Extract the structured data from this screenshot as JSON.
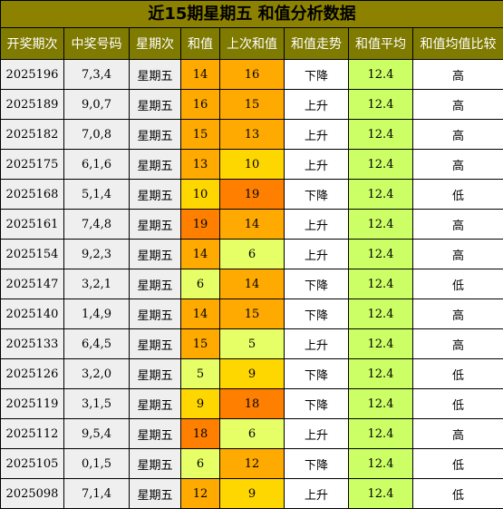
{
  "title": "近15期星期五 和值分析数据",
  "headers": [
    "开奖期次",
    "中奖号码",
    "星期次",
    "和值",
    "上次和值",
    "和值走势",
    "和值平均",
    "和值均值比较"
  ],
  "colors": {
    "title_bg": "#8c8200",
    "header_bg": "#7f7a00",
    "sum_10_or_less": "#ffd700",
    "sum_11_to_16": "#ffaa00",
    "sum_17_plus": "#ff8000",
    "sum_low": "#e6ff66",
    "avg_bg": "#ccff66"
  },
  "rows": [
    {
      "issue": "2025196",
      "numbers": "7,3,4",
      "weekday": "星期五",
      "sum": "14",
      "prev_sum": "16",
      "trend": "下降",
      "avg": "12.4",
      "compare": "高"
    },
    {
      "issue": "2025189",
      "numbers": "9,0,7",
      "weekday": "星期五",
      "sum": "16",
      "prev_sum": "15",
      "trend": "上升",
      "avg": "12.4",
      "compare": "高"
    },
    {
      "issue": "2025182",
      "numbers": "7,0,8",
      "weekday": "星期五",
      "sum": "15",
      "prev_sum": "13",
      "trend": "上升",
      "avg": "12.4",
      "compare": "高"
    },
    {
      "issue": "2025175",
      "numbers": "6,1,6",
      "weekday": "星期五",
      "sum": "13",
      "prev_sum": "10",
      "trend": "上升",
      "avg": "12.4",
      "compare": "高"
    },
    {
      "issue": "2025168",
      "numbers": "5,1,4",
      "weekday": "星期五",
      "sum": "10",
      "prev_sum": "19",
      "trend": "下降",
      "avg": "12.4",
      "compare": "低"
    },
    {
      "issue": "2025161",
      "numbers": "7,4,8",
      "weekday": "星期五",
      "sum": "19",
      "prev_sum": "14",
      "trend": "上升",
      "avg": "12.4",
      "compare": "高"
    },
    {
      "issue": "2025154",
      "numbers": "9,2,3",
      "weekday": "星期五",
      "sum": "14",
      "prev_sum": "6",
      "trend": "上升",
      "avg": "12.4",
      "compare": "高"
    },
    {
      "issue": "2025147",
      "numbers": "3,2,1",
      "weekday": "星期五",
      "sum": "6",
      "prev_sum": "14",
      "trend": "下降",
      "avg": "12.4",
      "compare": "低"
    },
    {
      "issue": "2025140",
      "numbers": "1,4,9",
      "weekday": "星期五",
      "sum": "14",
      "prev_sum": "15",
      "trend": "下降",
      "avg": "12.4",
      "compare": "高"
    },
    {
      "issue": "2025133",
      "numbers": "6,4,5",
      "weekday": "星期五",
      "sum": "15",
      "prev_sum": "5",
      "trend": "上升",
      "avg": "12.4",
      "compare": "高"
    },
    {
      "issue": "2025126",
      "numbers": "3,2,0",
      "weekday": "星期五",
      "sum": "5",
      "prev_sum": "9",
      "trend": "下降",
      "avg": "12.4",
      "compare": "低"
    },
    {
      "issue": "2025119",
      "numbers": "3,1,5",
      "weekday": "星期五",
      "sum": "9",
      "prev_sum": "18",
      "trend": "下降",
      "avg": "12.4",
      "compare": "低"
    },
    {
      "issue": "2025112",
      "numbers": "9,5,4",
      "weekday": "星期五",
      "sum": "18",
      "prev_sum": "6",
      "trend": "上升",
      "avg": "12.4",
      "compare": "高"
    },
    {
      "issue": "2025105",
      "numbers": "0,1,5",
      "weekday": "星期五",
      "sum": "6",
      "prev_sum": "12",
      "trend": "下降",
      "avg": "12.4",
      "compare": "低"
    },
    {
      "issue": "2025098",
      "numbers": "7,1,4",
      "weekday": "星期五",
      "sum": "12",
      "prev_sum": "9",
      "trend": "上升",
      "avg": "12.4",
      "compare": "低"
    }
  ]
}
